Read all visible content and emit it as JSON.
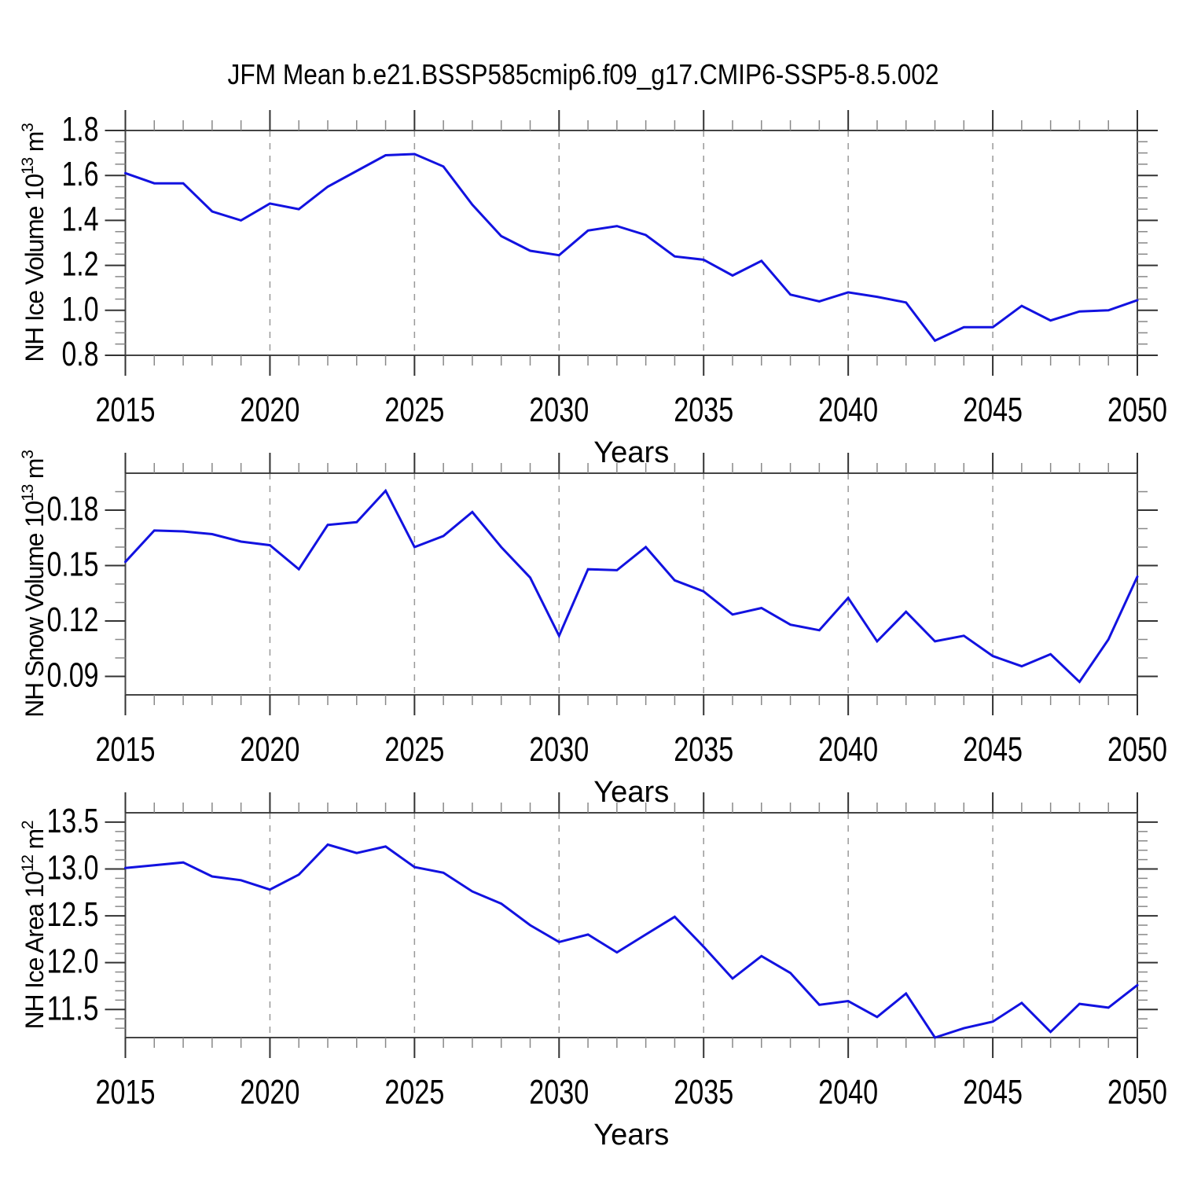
{
  "title": "JFM Mean b.e21.BSSP585cmip6.f09_g17.CMIP6-SSP5-8.5.002",
  "colors": {
    "line": "#1212e0",
    "frame": "#444444",
    "major_tick": "#333333",
    "minor_tick": "#888888",
    "grid": "#999999",
    "text": "#000000"
  },
  "x_axis": {
    "label": "Years",
    "start": 2015,
    "end": 2050,
    "major_ticks": [
      2015,
      2020,
      2025,
      2030,
      2035,
      2040,
      2045,
      2050
    ],
    "minor_step": 1,
    "grid_years": [
      2020,
      2025,
      2030,
      2035,
      2040,
      2045
    ]
  },
  "chart_data": [
    {
      "type": "line",
      "panel": "nh-ice-volume",
      "ylabel_plain": "NH Ice Volume 10^13 m^3",
      "ylabel": {
        "prefix": "NH Ice Volume 10",
        "sup1": "13",
        "mid": " m",
        "sup2": "3"
      },
      "xlabel": "Years",
      "x": [
        2015,
        2016,
        2017,
        2018,
        2019,
        2020,
        2021,
        2022,
        2023,
        2024,
        2025,
        2026,
        2027,
        2028,
        2029,
        2030,
        2031,
        2032,
        2033,
        2034,
        2035,
        2036,
        2037,
        2038,
        2039,
        2040,
        2041,
        2042,
        2043,
        2044,
        2045,
        2046,
        2047,
        2048,
        2049,
        2050
      ],
      "values": [
        1.61,
        1.565,
        1.565,
        1.44,
        1.4,
        1.475,
        1.45,
        1.55,
        1.62,
        1.69,
        1.695,
        1.64,
        1.47,
        1.33,
        1.265,
        1.245,
        1.355,
        1.375,
        1.335,
        1.24,
        1.225,
        1.155,
        1.22,
        1.07,
        1.04,
        1.08,
        1.06,
        1.035,
        0.865,
        0.925,
        0.925,
        1.02,
        0.955,
        0.995,
        1.0,
        1.045
      ],
      "ylim": [
        0.8,
        1.8
      ],
      "yticks": [
        "0.8",
        "1.0",
        "1.2",
        "1.4",
        "1.6",
        "1.8"
      ],
      "y_minor_step": 0.05
    },
    {
      "type": "line",
      "panel": "nh-snow-volume",
      "ylabel_plain": "NH Snow Volume 10^13 m^3",
      "ylabel": {
        "prefix": "NH Snow Volume 10",
        "sup1": "13",
        "mid": " m",
        "sup2": "3"
      },
      "xlabel": "Years",
      "x": [
        2015,
        2016,
        2017,
        2018,
        2019,
        2020,
        2021,
        2022,
        2023,
        2024,
        2025,
        2026,
        2027,
        2028,
        2029,
        2030,
        2031,
        2032,
        2033,
        2034,
        2035,
        2036,
        2037,
        2038,
        2039,
        2040,
        2041,
        2042,
        2043,
        2044,
        2045,
        2046,
        2047,
        2048,
        2049,
        2050
      ],
      "values": [
        0.152,
        0.169,
        0.1685,
        0.167,
        0.163,
        0.161,
        0.148,
        0.172,
        0.1735,
        0.1905,
        0.16,
        0.166,
        0.179,
        0.16,
        0.1435,
        0.112,
        0.148,
        0.1475,
        0.16,
        0.142,
        0.136,
        0.1235,
        0.127,
        0.118,
        0.115,
        0.1325,
        0.109,
        0.125,
        0.109,
        0.112,
        0.101,
        0.0955,
        0.102,
        0.087,
        0.11,
        0.144
      ],
      "ylim": [
        0.08,
        0.2
      ],
      "yticks": [
        "0.09",
        "0.12",
        "0.15",
        "0.18"
      ],
      "y_minor_step": 0.01
    },
    {
      "type": "line",
      "panel": "nh-ice-area",
      "ylabel_plain": "NH Ice Area 10^12 m^2",
      "ylabel": {
        "prefix": "NH Ice Area 10",
        "sup1": "12",
        "mid": " m",
        "sup2": "2"
      },
      "xlabel": "Years",
      "x": [
        2015,
        2016,
        2017,
        2018,
        2019,
        2020,
        2021,
        2022,
        2023,
        2024,
        2025,
        2026,
        2027,
        2028,
        2029,
        2030,
        2031,
        2032,
        2033,
        2034,
        2035,
        2036,
        2037,
        2038,
        2039,
        2040,
        2041,
        2042,
        2043,
        2044,
        2045,
        2046,
        2047,
        2048,
        2049,
        2050
      ],
      "values": [
        13.01,
        13.04,
        13.07,
        12.92,
        12.88,
        12.78,
        12.94,
        13.26,
        13.17,
        13.24,
        13.02,
        12.96,
        12.76,
        12.63,
        12.4,
        12.22,
        12.3,
        12.11,
        12.3,
        12.49,
        12.17,
        11.83,
        12.07,
        11.89,
        11.55,
        11.59,
        11.42,
        11.67,
        11.2,
        11.3,
        11.37,
        11.57,
        11.26,
        11.56,
        11.52,
        11.76
      ],
      "ylim": [
        11.2,
        13.6
      ],
      "yticks": [
        "11.5",
        "12.0",
        "12.5",
        "13.0",
        "13.5"
      ],
      "y_minor_step": 0.1
    }
  ]
}
